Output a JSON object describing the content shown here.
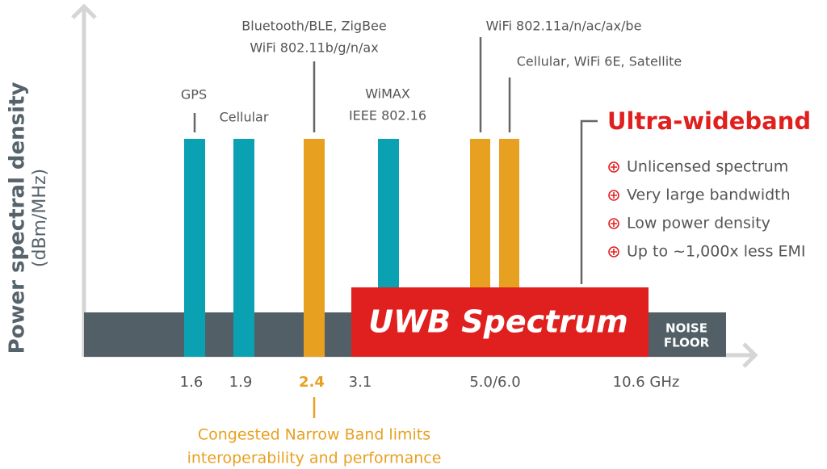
{
  "axis_label": {
    "title": "Power spectral density",
    "unit": "(dBm/MHz)"
  },
  "bands": [
    {
      "lines": [
        "GPS"
      ]
    },
    {
      "lines": [
        "Cellular"
      ]
    },
    {
      "lines": [
        "Bluetooth/BLE, ZigBee",
        "WiFi 802.11b/g/n/ax"
      ]
    },
    {
      "lines": [
        "WiMAX",
        "IEEE 802.16"
      ]
    },
    {
      "lines": [
        "WiFi 802.11a/n/ac/ax/be"
      ]
    },
    {
      "lines": [
        "Cellular, WiFi 6E, Satellite"
      ]
    }
  ],
  "frequencies": [
    "1.6",
    "1.9",
    "2.4",
    "3.1",
    "5.0/6.0",
    "10.6 GHz"
  ],
  "uwb_label": "UWB Spectrum",
  "noise_floor": [
    "NOISE",
    "FLOOR"
  ],
  "panel": {
    "title": "Ultra-wideband",
    "bullets": [
      "Unlicensed spectrum",
      "Very large bandwidth",
      "Low power density",
      "Up to ~1,000x less EMI"
    ]
  },
  "note": [
    "Congested Narrow Band limits",
    "interoperability and performance"
  ]
}
